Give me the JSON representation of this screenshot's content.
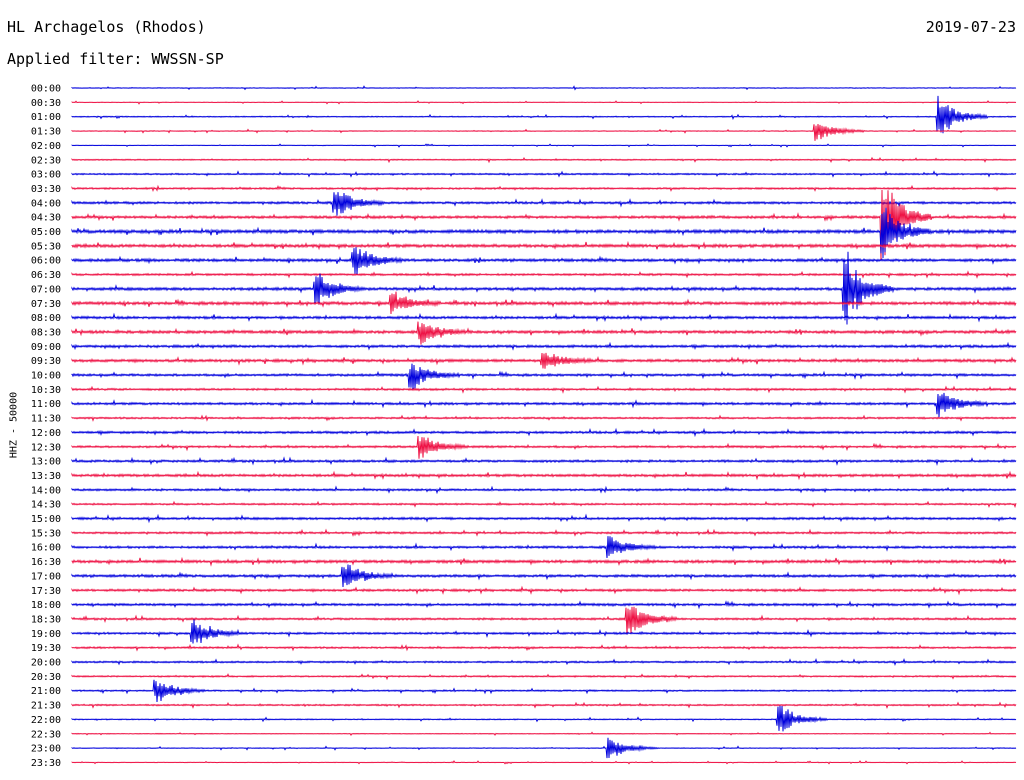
{
  "header": {
    "station": "HL Archagelos (Rhodos)",
    "date": "2019-07-23",
    "filter": "Applied filter: WWSSN-SP"
  },
  "chart_data": {
    "type": "line",
    "title": "HL Archagelos (Rhodos)",
    "ylabel": "HHZ - 50000",
    "xlabel": "",
    "categories": [
      "00:00",
      "00:30",
      "01:00",
      "01:30",
      "02:00",
      "02:30",
      "03:00",
      "03:30",
      "04:00",
      "04:30",
      "05:00",
      "05:30",
      "06:00",
      "06:30",
      "07:00",
      "07:30",
      "08:00",
      "08:30",
      "09:00",
      "09:30",
      "10:00",
      "10:30",
      "11:00",
      "11:30",
      "12:00",
      "12:30",
      "13:00",
      "13:30",
      "14:00",
      "14:30",
      "15:00",
      "15:30",
      "16:00",
      "16:30",
      "17:00",
      "17:30",
      "18:00",
      "18:30",
      "19:00",
      "19:30",
      "20:00",
      "20:30",
      "21:00",
      "21:30",
      "22:00",
      "22:30",
      "23:00",
      "23:30"
    ],
    "colors": [
      "#0000dd",
      "#ee1144"
    ],
    "trace_levels": [
      0.15,
      0.1,
      0.2,
      0.15,
      0.1,
      0.25,
      0.3,
      0.35,
      0.45,
      0.5,
      0.65,
      0.6,
      0.55,
      0.4,
      0.55,
      0.6,
      0.5,
      0.55,
      0.5,
      0.55,
      0.45,
      0.4,
      0.45,
      0.35,
      0.45,
      0.4,
      0.45,
      0.5,
      0.4,
      0.35,
      0.45,
      0.4,
      0.45,
      0.55,
      0.5,
      0.45,
      0.45,
      0.4,
      0.4,
      0.35,
      0.35,
      0.3,
      0.3,
      0.3,
      0.2,
      0.15,
      0.15,
      0.1
    ],
    "events": [
      {
        "row": 2,
        "t": 0.92,
        "amp": 1.6
      },
      {
        "row": 3,
        "t": 0.79,
        "amp": 0.8
      },
      {
        "row": 8,
        "t": 0.28,
        "amp": 1.2
      },
      {
        "row": 9,
        "t": 0.86,
        "amp": 3.2
      },
      {
        "row": 10,
        "t": 0.86,
        "amp": 2.0
      },
      {
        "row": 12,
        "t": 0.3,
        "amp": 1.2
      },
      {
        "row": 14,
        "t": 0.82,
        "amp": 3.0
      },
      {
        "row": 14,
        "t": 0.26,
        "amp": 1.3
      },
      {
        "row": 15,
        "t": 0.34,
        "amp": 0.8
      },
      {
        "row": 17,
        "t": 0.37,
        "amp": 0.9
      },
      {
        "row": 19,
        "t": 0.5,
        "amp": 0.8
      },
      {
        "row": 20,
        "t": 0.36,
        "amp": 1.1
      },
      {
        "row": 22,
        "t": 0.92,
        "amp": 1.0
      },
      {
        "row": 25,
        "t": 0.37,
        "amp": 0.9
      },
      {
        "row": 32,
        "t": 0.57,
        "amp": 0.8
      },
      {
        "row": 34,
        "t": 0.29,
        "amp": 1.0
      },
      {
        "row": 37,
        "t": 0.59,
        "amp": 1.3
      },
      {
        "row": 38,
        "t": 0.13,
        "amp": 1.0
      },
      {
        "row": 42,
        "t": 0.09,
        "amp": 1.0
      },
      {
        "row": 44,
        "t": 0.75,
        "amp": 1.2
      },
      {
        "row": 46,
        "t": 0.57,
        "amp": 0.9
      }
    ]
  }
}
